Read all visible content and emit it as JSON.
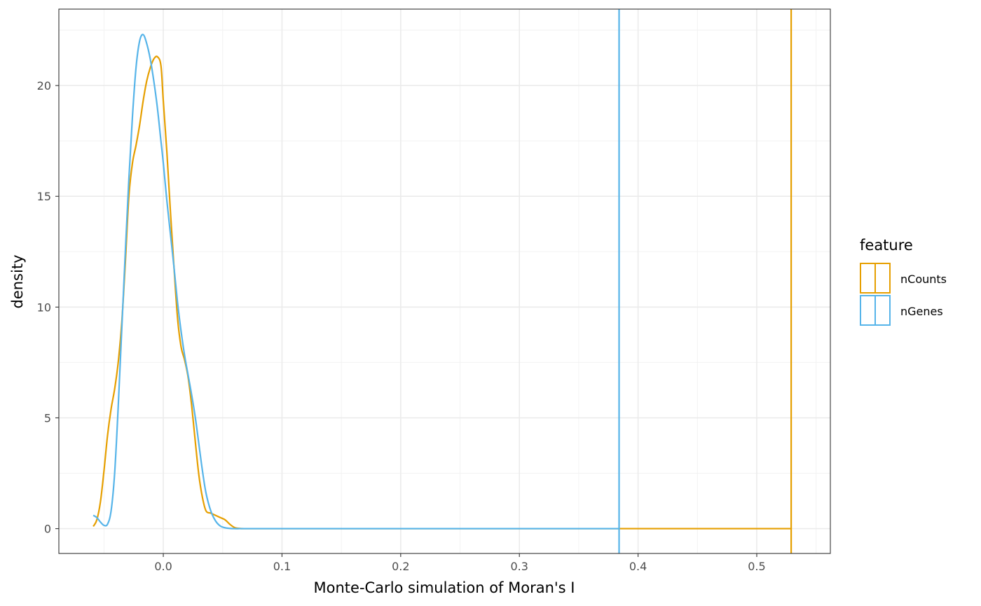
{
  "chart_data": {
    "type": "line",
    "title": "",
    "xlabel": "Monte-Carlo simulation of Moran's I",
    "ylabel": "density",
    "xlim": [
      -0.088,
      0.562
    ],
    "ylim": [
      -1.12,
      23.45
    ],
    "x_ticks": [
      0.0,
      0.1,
      0.2,
      0.3,
      0.4,
      0.5
    ],
    "x_tick_labels": [
      "0.0",
      "0.1",
      "0.2",
      "0.3",
      "0.4",
      "0.5"
    ],
    "y_ticks": [
      0,
      5,
      10,
      15,
      20
    ],
    "y_tick_labels": [
      "0",
      "5",
      "10",
      "15",
      "20"
    ],
    "grid": true,
    "legend_title": "feature",
    "legend_position": "right",
    "series": [
      {
        "name": "nCounts",
        "color": "#E69F00",
        "observed_vline": 0.529,
        "x": [
          -0.059,
          -0.056,
          -0.053,
          -0.05,
          -0.047,
          -0.044,
          -0.041,
          -0.038,
          -0.035,
          -0.032,
          -0.029,
          -0.026,
          -0.023,
          -0.02,
          -0.017,
          -0.014,
          -0.011,
          -0.008,
          -0.005,
          -0.002,
          0.0,
          0.003,
          0.006,
          0.009,
          0.012,
          0.015,
          0.018,
          0.021,
          0.024,
          0.027,
          0.03,
          0.033,
          0.036,
          0.04,
          0.044,
          0.048,
          0.052,
          0.056,
          0.06,
          0.064,
          0.068,
          0.08,
          0.1,
          0.2,
          0.3,
          0.4,
          0.529
        ],
        "values": [
          0.1,
          0.4,
          1.2,
          2.6,
          4.2,
          5.4,
          6.3,
          7.5,
          9.3,
          12.0,
          15.0,
          16.5,
          17.3,
          18.2,
          19.3,
          20.2,
          20.8,
          21.2,
          21.3,
          20.9,
          19.3,
          17.0,
          14.3,
          11.8,
          9.5,
          8.2,
          7.6,
          6.8,
          5.5,
          3.9,
          2.4,
          1.4,
          0.8,
          0.7,
          0.6,
          0.5,
          0.4,
          0.2,
          0.05,
          0.01,
          0.0,
          0.0,
          0.0,
          0.0,
          0.0,
          0.0,
          0.0
        ]
      },
      {
        "name": "nGenes",
        "color": "#56B4E9",
        "observed_vline": 0.384,
        "x": [
          -0.059,
          -0.056,
          -0.053,
          -0.05,
          -0.047,
          -0.044,
          -0.041,
          -0.038,
          -0.035,
          -0.032,
          -0.029,
          -0.026,
          -0.023,
          -0.02,
          -0.017,
          -0.014,
          -0.011,
          -0.008,
          -0.005,
          -0.002,
          0.0,
          0.003,
          0.006,
          0.009,
          0.012,
          0.015,
          0.018,
          0.021,
          0.024,
          0.027,
          0.03,
          0.033,
          0.036,
          0.04,
          0.044,
          0.048,
          0.052,
          0.056,
          0.06,
          0.064,
          0.068,
          0.08,
          0.1,
          0.2,
          0.3,
          0.384
        ],
        "values": [
          0.6,
          0.5,
          0.3,
          0.15,
          0.2,
          0.8,
          2.5,
          5.5,
          9.0,
          12.5,
          15.8,
          18.6,
          20.8,
          22.0,
          22.3,
          21.9,
          21.2,
          20.2,
          19.0,
          17.5,
          16.5,
          14.8,
          13.3,
          11.8,
          10.2,
          8.9,
          7.8,
          6.9,
          6.0,
          5.0,
          3.8,
          2.6,
          1.6,
          0.8,
          0.35,
          0.12,
          0.04,
          0.01,
          0.0,
          0.0,
          0.0,
          0.0,
          0.0,
          0.0,
          0.0,
          0.0
        ]
      }
    ]
  }
}
